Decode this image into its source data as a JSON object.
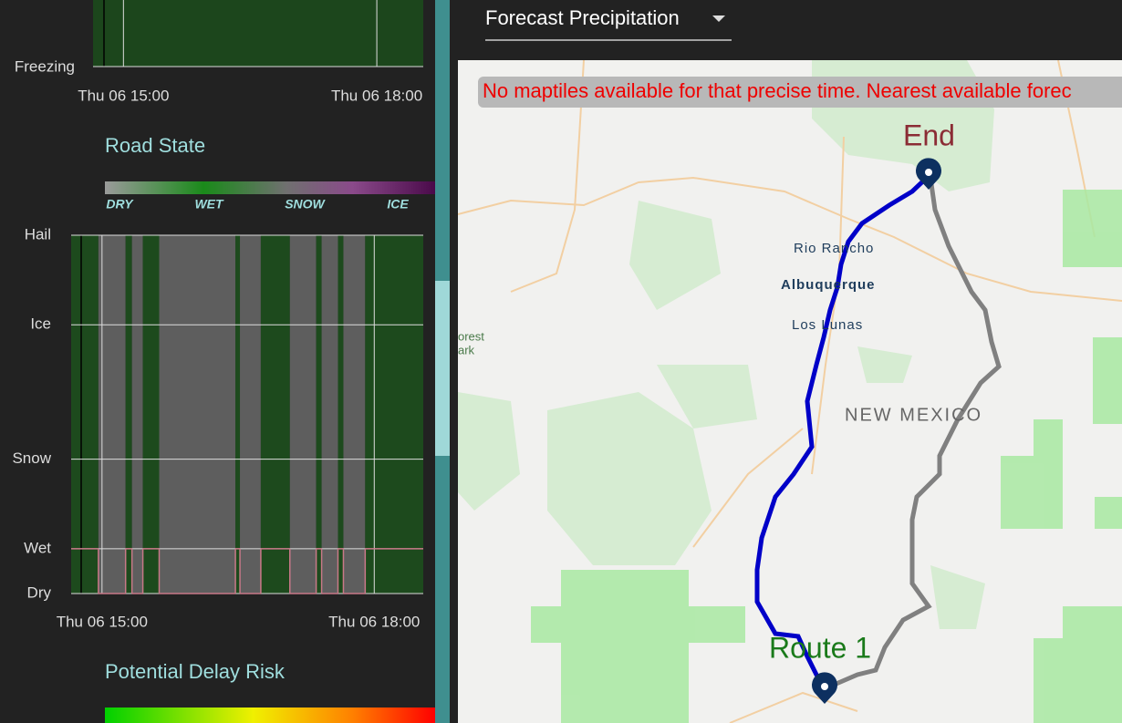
{
  "chart_data": [
    {
      "type": "area",
      "color": "#1c461c",
      "yticks": [
        {
          "value": 0,
          "label": "Freezing"
        }
      ],
      "xlim": [
        14.64,
        18.55
      ],
      "xticks": [
        {
          "value": 15,
          "label": "Thu 06 15:00"
        },
        {
          "value": 18,
          "label": "Thu 06 18:00"
        }
      ]
    },
    {
      "type": "step",
      "title": "Road State",
      "legend": [
        "DRY",
        "WET",
        "SNOW",
        "ICE"
      ],
      "x": [
        14.66,
        14.96,
        15.26,
        15.33,
        15.45,
        15.63,
        16.47,
        16.52,
        16.75,
        17.07,
        17.36,
        17.42,
        17.6,
        17.66,
        17.9
      ],
      "values": [
        1,
        0,
        1,
        0,
        1,
        0,
        1,
        0,
        1,
        0,
        1,
        0,
        1,
        0,
        1
      ],
      "color": "#c87888",
      "state_colors": [
        "#5e5e5e",
        "#1d4a1d"
      ],
      "xlim": [
        14.66,
        18.54
      ],
      "ylim": [
        0,
        8
      ],
      "yticks": [
        {
          "value": 0,
          "label": "Dry"
        },
        {
          "value": 1,
          "label": "Wet"
        },
        {
          "value": 3,
          "label": "Snow"
        },
        {
          "value": 6,
          "label": "Ice"
        },
        {
          "value": 8,
          "label": "Hail"
        }
      ],
      "xticks": [
        {
          "value": 15,
          "label": "Thu 06 15:00"
        },
        {
          "value": 18,
          "label": "Thu 06 18:00"
        }
      ],
      "grid": true
    }
  ],
  "delay_risk": {
    "title": "Potential Delay Risk"
  },
  "header": {
    "dropdown": "Forecast Precipitation"
  },
  "map": {
    "banner": "No maptiles available for that precise time. Nearest available forec",
    "end_label": "End",
    "route_label": "Route 1",
    "places": [
      "Rio Rancho",
      "Albuquerque",
      "Los Lunas",
      "NEW MEXICO",
      "orest",
      "ark"
    ]
  }
}
